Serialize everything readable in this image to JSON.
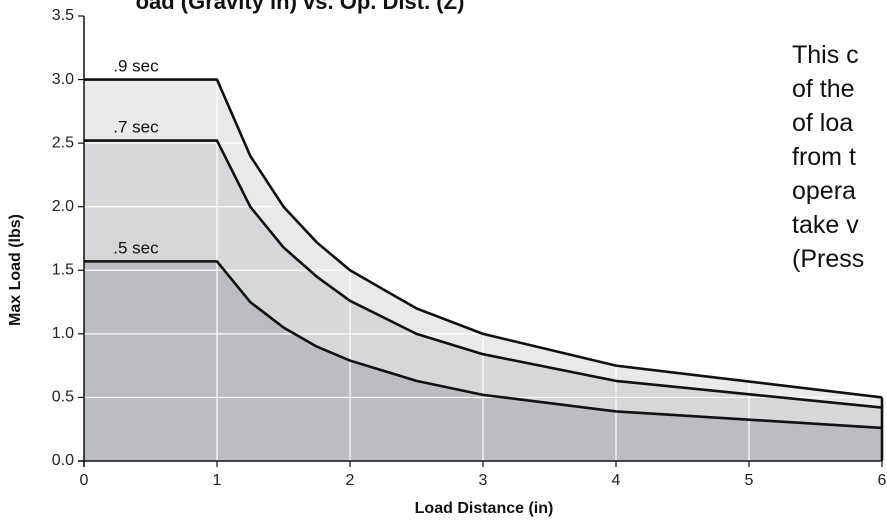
{
  "chart_data": {
    "type": "area",
    "title": "oad (Gravity in) vs. Op. Dist. (Z)",
    "xlabel": "Load Distance (in)",
    "ylabel": "Max Load (lbs)",
    "xlim": [
      0,
      6
    ],
    "ylim": [
      0,
      3.5
    ],
    "xticks": [
      "0",
      "1",
      "2",
      "3",
      "4",
      "5",
      "6"
    ],
    "yticks": [
      "0.0",
      "0.5",
      "1.0",
      "1.5",
      "2.0",
      "2.5",
      "3.0",
      "3.5"
    ],
    "grid": true,
    "series": [
      {
        "name": ".9 sec",
        "color": "#e9e9ea",
        "x": [
          0,
          1,
          1.25,
          1.5,
          1.75,
          2,
          2.5,
          3,
          4,
          6
        ],
        "values": [
          3.0,
          3.0,
          2.4,
          2.0,
          1.72,
          1.5,
          1.2,
          1.0,
          0.75,
          0.5
        ]
      },
      {
        "name": ".7 sec",
        "color": "#d7d7d9",
        "x": [
          0,
          1,
          1.25,
          1.5,
          1.75,
          2,
          2.5,
          3,
          4,
          6
        ],
        "values": [
          2.52,
          2.52,
          2.0,
          1.68,
          1.45,
          1.26,
          1.0,
          0.84,
          0.63,
          0.42
        ]
      },
      {
        "name": ".5 sec",
        "color": "#bcbdc0",
        "x": [
          0,
          1,
          1.25,
          1.5,
          1.75,
          2,
          2.5,
          3,
          4,
          6
        ],
        "values": [
          1.57,
          1.57,
          1.25,
          1.05,
          0.9,
          0.79,
          0.63,
          0.52,
          0.39,
          0.26
        ]
      }
    ]
  },
  "description": {
    "lines": [
      "This c",
      "of the",
      "of loa",
      "from t",
      "opera",
      "take v",
      "(Press"
    ]
  }
}
